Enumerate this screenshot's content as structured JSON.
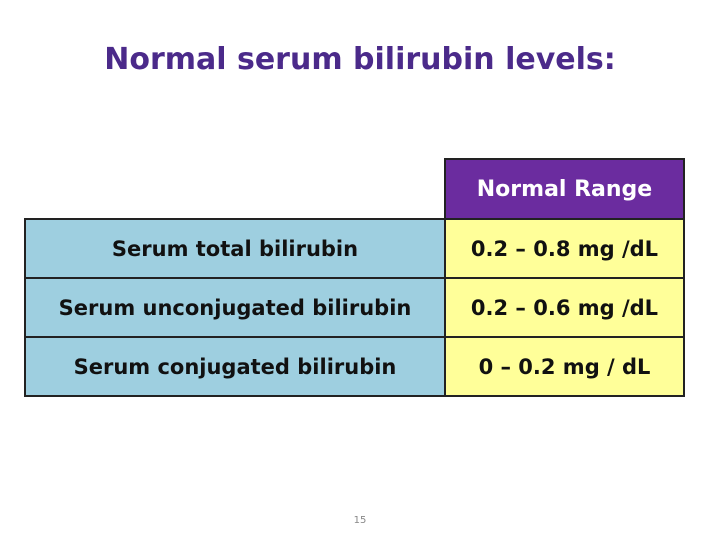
{
  "title": "Normal serum bilirubin levels:",
  "table": {
    "header": "Normal Range",
    "rows": [
      [
        "Serum total bilirubin",
        "0.2 –  0.8 mg /dL"
      ],
      [
        "Serum unconjugated bilirubin",
        "0.2 – 0.6 mg /dL"
      ],
      [
        "Serum conjugated bilirubin",
        "0 – 0.2 mg / dL"
      ]
    ]
  },
  "page_number": "15"
}
